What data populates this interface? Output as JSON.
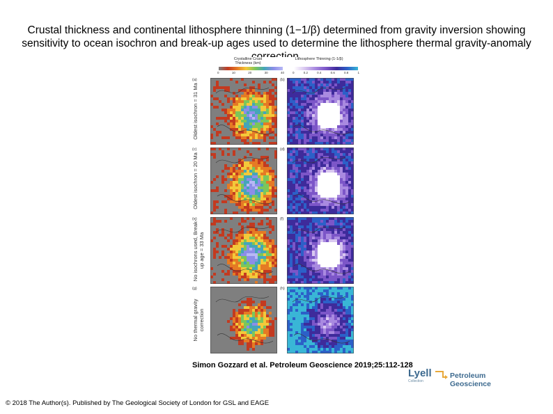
{
  "title": "Crustal thickness and continental lithosphere thinning (1−1/β) determined from gravity inversion showing sensitivity to ocean isochron and break-up ages used to determine the lithosphere thermal gravity-anomaly correction.",
  "figure": {
    "colorbar_left": {
      "label": "Crystalline Crust Thickness (km)",
      "ticks": [
        "0",
        "10",
        "20",
        "30",
        "40"
      ]
    },
    "colorbar_right": {
      "label": "Lithosphere Thinning (1-1/β)",
      "ticks": [
        "0",
        "0.2",
        "0.4",
        "0.6",
        "0.8",
        "1"
      ]
    },
    "rows": [
      {
        "label": "Oldest isochron = 31 Ma",
        "left_panel": "(a)",
        "right_panel": "(b)"
      },
      {
        "label": "Oldest isochron = 20 Ma",
        "left_panel": "(c)",
        "right_panel": "(d)"
      },
      {
        "label": "No isochrons used, Break-up age = 33 Ma",
        "left_panel": "(e)",
        "right_panel": "(f)"
      },
      {
        "label": "No thermal gravity correction",
        "left_panel": "(g)",
        "right_panel": "(h)"
      }
    ]
  },
  "citation": "Simon Gozzard et al. Petroleum Geoscience 2019;25:112-128",
  "copyright": "© 2018 The Author(s). Published by The Geological Society of London for GSL and EAGE",
  "logo": {
    "lyell": "Lyell",
    "lyell_sub": "Collection",
    "journal": "Petroleum Geoscience"
  },
  "colors": {
    "crust_ramp": [
      "#7f7f7f",
      "#c33a20",
      "#e57a24",
      "#f3c93a",
      "#7cc65a",
      "#45a6b8",
      "#8c8ee8",
      "#b7b8f5"
    ],
    "thinning_ramp": [
      "#ffffff",
      "#d9c8f0",
      "#a98ae0",
      "#7c56c8",
      "#3e2b9b",
      "#2c60c8",
      "#39b6d6"
    ]
  }
}
